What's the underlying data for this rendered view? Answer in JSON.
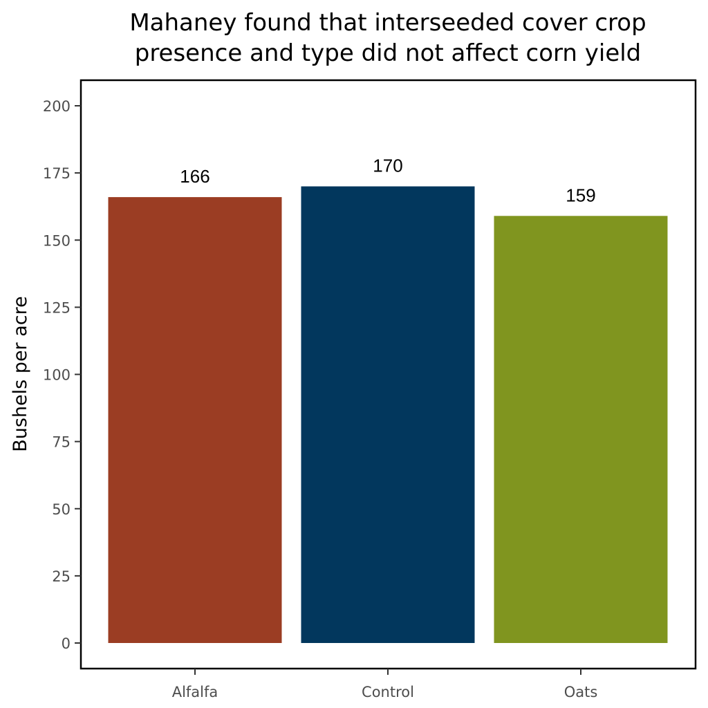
{
  "chart_data": {
    "type": "bar",
    "title_lines": [
      "Mahaney found that interseeded cover crop",
      "presence and type did not affect corn yield"
    ],
    "xlabel": "",
    "ylabel": "Bushels per acre",
    "categories": [
      "Alfalfa",
      "Control",
      "Oats"
    ],
    "values": [
      166,
      170,
      159
    ],
    "data_labels": [
      "166",
      "170",
      "159"
    ],
    "bar_colors": [
      "#9b3d23",
      "#02375d",
      "#80951f"
    ],
    "ylim": [
      0,
      210
    ],
    "yticks": [
      0,
      25,
      50,
      75,
      100,
      125,
      150,
      175,
      200
    ],
    "grid": false,
    "legend": "none"
  }
}
